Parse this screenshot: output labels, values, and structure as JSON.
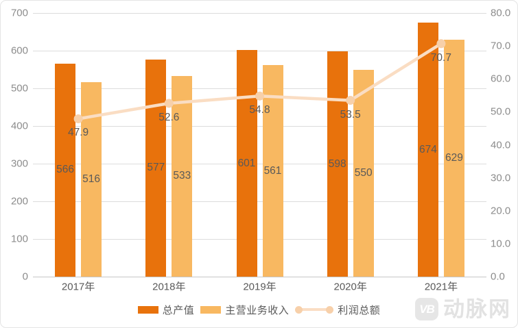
{
  "chart_data": {
    "type": "bar",
    "subtype": "grouped-bars-with-line",
    "title": "",
    "categories": [
      "2017年",
      "2018年",
      "2019年",
      "2020年",
      "2021年"
    ],
    "series": [
      {
        "name": "总产值",
        "type": "bar",
        "axis": "left",
        "color": "#E8720C",
        "values": [
          566,
          577,
          601,
          598,
          674
        ]
      },
      {
        "name": "主营业务收入",
        "type": "bar",
        "axis": "left",
        "color": "#F8B861",
        "values": [
          516,
          533,
          561,
          550,
          629
        ]
      },
      {
        "name": "利润总额",
        "type": "line",
        "axis": "right",
        "color": "#FADDC3",
        "marker_color": "#F7D0AA",
        "values": [
          47.9,
          52.6,
          54.8,
          53.5,
          70.7
        ]
      }
    ],
    "left_axis": {
      "min": 0,
      "max": 700,
      "step": 100,
      "ticks": [
        "0",
        "100",
        "200",
        "300",
        "400",
        "500",
        "600",
        "700"
      ]
    },
    "right_axis": {
      "min": 0,
      "max": 80,
      "step": 10,
      "ticks": [
        "0.0",
        "10.0",
        "20.0",
        "30.0",
        "40.0",
        "50.0",
        "60.0",
        "70.0",
        "80.0"
      ]
    },
    "grid": "horizontal",
    "legend_position": "bottom"
  },
  "palette": {
    "tick_text": "#8C8C8C",
    "data_label": "#595959",
    "gridline": "#DCDCDC",
    "axis_line": "#C6C6C6",
    "watermark_gray": "#E2E2E2"
  },
  "watermark": {
    "logo_text": "VB",
    "brand": "动脉网"
  }
}
